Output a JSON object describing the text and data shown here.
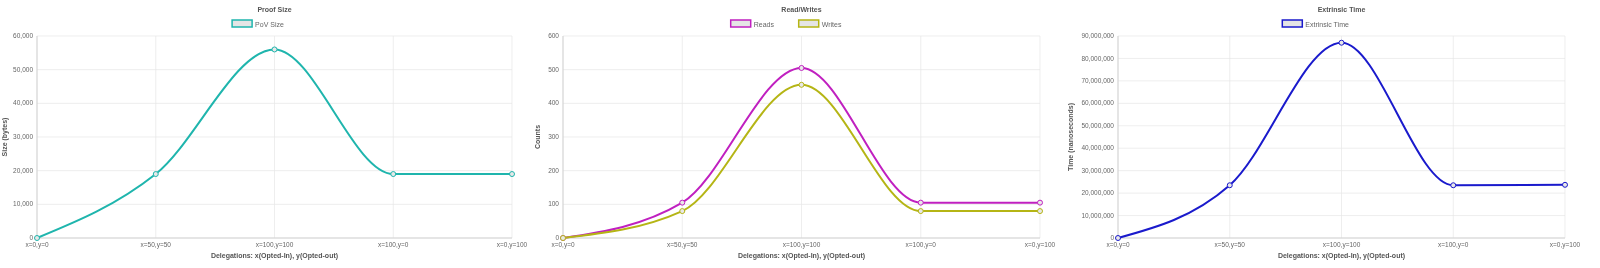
{
  "chart_data": [
    {
      "type": "line",
      "title": "Proof Size",
      "xlabel": "Delegations: x(Opted-In), y(Opted-out)",
      "ylabel": "Size (bytes)",
      "categories": [
        "x=0,y=0",
        "x=50,y=50",
        "x=100,y=100",
        "x=100,y=0",
        "x=0,y=100"
      ],
      "series": [
        {
          "name": "PoV Size",
          "color": "#1fb5ad",
          "values": [
            0,
            19000,
            56000,
            19000,
            19000
          ]
        }
      ],
      "ylim": [
        0,
        60000
      ],
      "yticks": [
        {
          "value": 0,
          "label": "0"
        },
        {
          "value": 10000,
          "label": "10,000"
        },
        {
          "value": 20000,
          "label": "20,000"
        },
        {
          "value": 30000,
          "label": "30,000"
        },
        {
          "value": 40000,
          "label": "40,000"
        },
        {
          "value": 50000,
          "label": "50,000"
        },
        {
          "value": 60000,
          "label": "60,000"
        }
      ],
      "grid": true,
      "legend": "top",
      "marker": "circle"
    },
    {
      "type": "line",
      "title": "Read/Writes",
      "xlabel": "Delegations: x(Opted-In), y(Opted-out)",
      "ylabel": "Counts",
      "categories": [
        "x=0,y=0",
        "x=50,y=50",
        "x=100,y=100",
        "x=100,y=0",
        "x=0,y=100"
      ],
      "series": [
        {
          "name": "Reads",
          "color": "#c020c0",
          "values": [
            0,
            105,
            505,
            105,
            105
          ]
        },
        {
          "name": "Writes",
          "color": "#b5b515",
          "values": [
            0,
            80,
            455,
            80,
            80
          ]
        }
      ],
      "ylim": [
        0,
        600
      ],
      "yticks": [
        0,
        100,
        200,
        300,
        400,
        500,
        600
      ],
      "grid": true,
      "legend": "top",
      "marker": "circle"
    },
    {
      "type": "line",
      "title": "Extrinsic Time",
      "xlabel": "Delegations: x(Opted-In), y(Opted-out)",
      "ylabel": "Time (nanoseconds)",
      "categories": [
        "x=0,y=0",
        "x=50,y=50",
        "x=100,y=100",
        "x=100,y=0",
        "x=0,y=100"
      ],
      "series": [
        {
          "name": "Extrinsic Time",
          "color": "#1a1acc",
          "values": [
            0,
            23500000,
            87000000,
            23500000,
            23700000
          ]
        }
      ],
      "ylim": [
        0,
        90000000
      ],
      "yticks": [
        {
          "value": 0,
          "label": "0"
        },
        {
          "value": 10000000,
          "label": "10,000,000"
        },
        {
          "value": 20000000,
          "label": "20,000,000"
        },
        {
          "value": 30000000,
          "label": "30,000,000"
        },
        {
          "value": 40000000,
          "label": "40,000,000"
        },
        {
          "value": 50000000,
          "label": "50,000,000"
        },
        {
          "value": 60000000,
          "label": "60,000,000"
        },
        {
          "value": 70000000,
          "label": "70,000,000"
        },
        {
          "value": 80000000,
          "label": "80,000,000"
        },
        {
          "value": 90000000,
          "label": "90,000,000"
        }
      ],
      "grid": true,
      "legend": "top",
      "marker": "circle"
    }
  ]
}
